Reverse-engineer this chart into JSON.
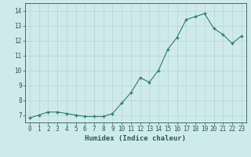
{
  "x": [
    0,
    1,
    2,
    3,
    4,
    5,
    6,
    7,
    8,
    9,
    10,
    11,
    12,
    13,
    14,
    15,
    16,
    17,
    18,
    19,
    20,
    21,
    22,
    23
  ],
  "y": [
    6.8,
    7.0,
    7.2,
    7.2,
    7.1,
    7.0,
    6.9,
    6.9,
    6.9,
    7.1,
    7.8,
    8.5,
    9.5,
    9.2,
    10.0,
    11.4,
    12.2,
    13.4,
    13.6,
    13.8,
    12.8,
    12.4,
    11.8,
    12.3
  ],
  "line_color": "#2e7d6e",
  "marker_color": "#2e7d6e",
  "bg_color": "#ceeaea",
  "grid_color": "#b8d4d4",
  "axis_color": "#2e5a5a",
  "tick_color": "#2e5a5a",
  "xlabel": "Humidex (Indice chaleur)",
  "ylim": [
    6.5,
    14.5
  ],
  "xlim": [
    -0.5,
    23.5
  ],
  "yticks": [
    7,
    8,
    9,
    10,
    11,
    12,
    13,
    14
  ],
  "xtick_labels": [
    "0",
    "1",
    "2",
    "3",
    "4",
    "5",
    "6",
    "7",
    "8",
    "9",
    "10",
    "11",
    "12",
    "13",
    "14",
    "15",
    "16",
    "17",
    "18",
    "19",
    "20",
    "21",
    "22",
    "23"
  ],
  "tick_fontsize": 5.5,
  "xlabel_fontsize": 6.5
}
